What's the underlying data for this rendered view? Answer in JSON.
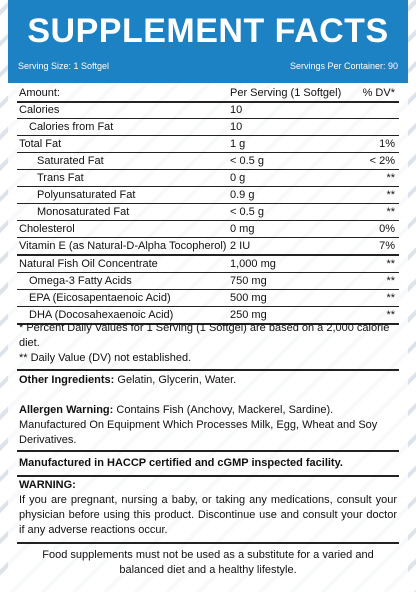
{
  "header": {
    "title": "SUPPLEMENT FACTS",
    "serving_size": "Serving Size: 1 Softgel",
    "servings_per_container": "Servings Per Container: 90"
  },
  "table": {
    "headers": [
      "Amount:",
      "Per Serving (1 Softgel)",
      "% DV*"
    ],
    "rows": [
      {
        "name": "Calories",
        "amount": "10",
        "dv": ""
      },
      {
        "name": "Calories from Fat",
        "amount": "10",
        "dv": ""
      },
      {
        "name": "Total Fat",
        "amount": "1 g",
        "dv": "1%"
      },
      {
        "name": "Saturated Fat",
        "amount": "< 0.5 g",
        "dv": "< 2%"
      },
      {
        "name": "Trans Fat",
        "amount": "0 g",
        "dv": "**"
      },
      {
        "name": "Polyunsaturated Fat",
        "amount": "0.9 g",
        "dv": "**"
      },
      {
        "name": "Monosaturated Fat",
        "amount": "< 0.5 g",
        "dv": "**"
      },
      {
        "name": "Cholesterol",
        "amount": "0 mg",
        "dv": "0%"
      },
      {
        "name": "Vitamin E (as Natural-D-Alpha Tocopherol)",
        "amount": "2 IU",
        "dv": "7%"
      },
      {
        "name": "Natural Fish Oil Concentrate",
        "amount": "1,000 mg",
        "dv": "**"
      },
      {
        "name": "Omega-3 Fatty Acids",
        "amount": "750 mg",
        "dv": "**"
      },
      {
        "name": "EPA (Eicosapentaenoic Acid)",
        "amount": "500 mg",
        "dv": "**"
      },
      {
        "name": "DHA (Docosahexaenoic Acid)",
        "amount": "250 mg",
        "dv": "**"
      }
    ]
  },
  "footnotes": {
    "line1": "* Percent Daily Values for 1 Serving (1 Softgel) are based on a 2,000 calorie diet.",
    "line2": "** Daily Value (DV) not established."
  },
  "other_ingredients": {
    "label": "Other Ingredients:",
    "text": " Gelatin, Glycerin, Water."
  },
  "allergen": {
    "label": "Allergen Warning:",
    "text": " Contains Fish (Anchovy, Mackerel, Sardine). Manufactured On Equipment Which Processes Milk, Egg, Wheat and Soy Derivatives."
  },
  "facility": "Manufactured in HACCP certified and cGMP inspected facility.",
  "warning": {
    "label": "WARNING:",
    "text": "If you are pregnant, nursing a baby, or taking any medications, consult your physician before using this product. Discontinue use and consult your doctor if any adverse reactions occur."
  },
  "disclaimer": "Food supplements must not be used as a substitute for a varied and balanced diet and a healthy lifestyle.",
  "colors": {
    "header_blue": "#1d82c4",
    "stripe": "#dde3ea"
  }
}
